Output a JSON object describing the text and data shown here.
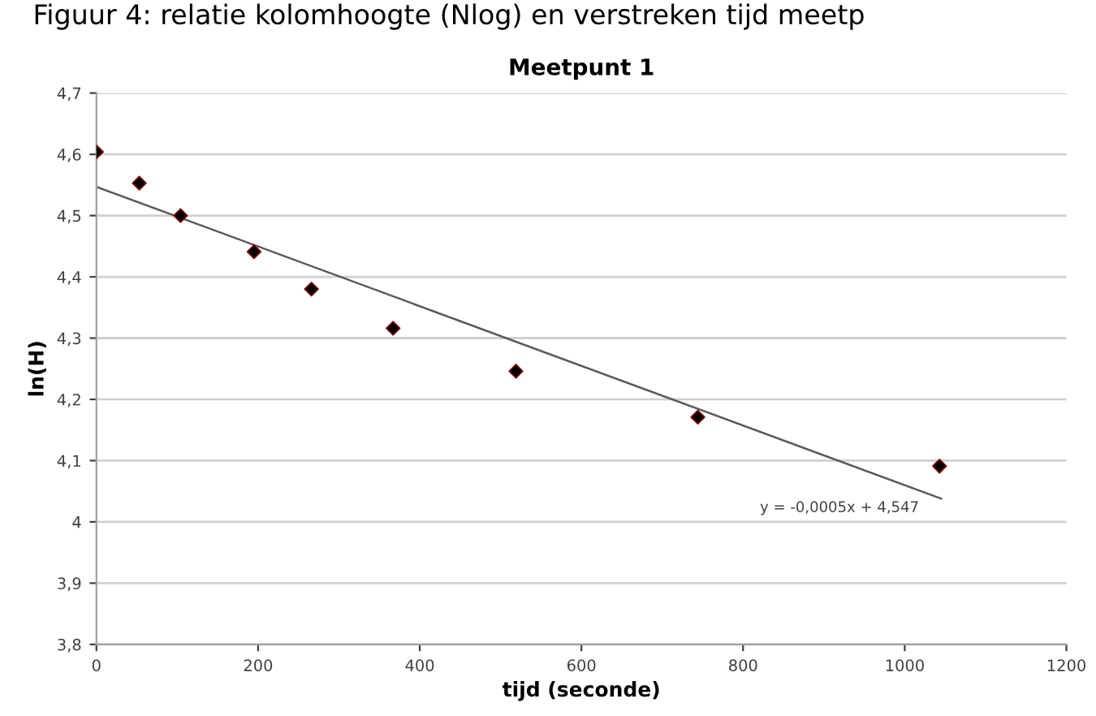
{
  "chart_data": {
    "type": "scatter",
    "title": "Meetpunt 1",
    "subtitle": "Figuur 4: relatie kolomhoogte (Nlog) en verstreken tijd meetp",
    "xlabel": "tijd (seconde)",
    "ylabel": "ln(H)",
    "x": [
      0,
      53,
      104,
      195,
      266,
      367,
      519,
      744,
      1043
    ],
    "series": [
      {
        "marker": "diamond",
        "color": "#000000",
        "values": [
          4.604,
          4.553,
          4.5,
          4.441,
          4.38,
          4.316,
          4.246,
          4.171,
          4.091
        ]
      },
      {
        "type": "line",
        "color": "#595959",
        "x": [
          0,
          1045
        ],
        "values": [
          4.547,
          4.038
        ]
      }
    ],
    "annotations": [
      {
        "text": "y = -0,0005x + 4,547",
        "x": 1040,
        "y": 4.038
      }
    ],
    "xlim": [
      0,
      1200
    ],
    "xticks": [
      0,
      200,
      400,
      600,
      800,
      1000,
      1200
    ],
    "ylim": [
      3.8,
      4.7
    ],
    "yticks": [
      {
        "value": 3.8,
        "label": "3,8"
      },
      {
        "value": 3.9,
        "label": "3,9"
      },
      4,
      {
        "value": 4.1,
        "label": "4,1"
      },
      {
        "value": 4.2,
        "label": "4,2"
      },
      {
        "value": 4.3,
        "label": "4,3"
      },
      {
        "value": 4.4,
        "label": "4,4"
      },
      {
        "value": 4.5,
        "label": "4,5"
      },
      {
        "value": 4.6,
        "label": "4,6"
      },
      {
        "value": 4.7,
        "label": "4,7"
      }
    ],
    "grid": "y",
    "legend": false
  }
}
